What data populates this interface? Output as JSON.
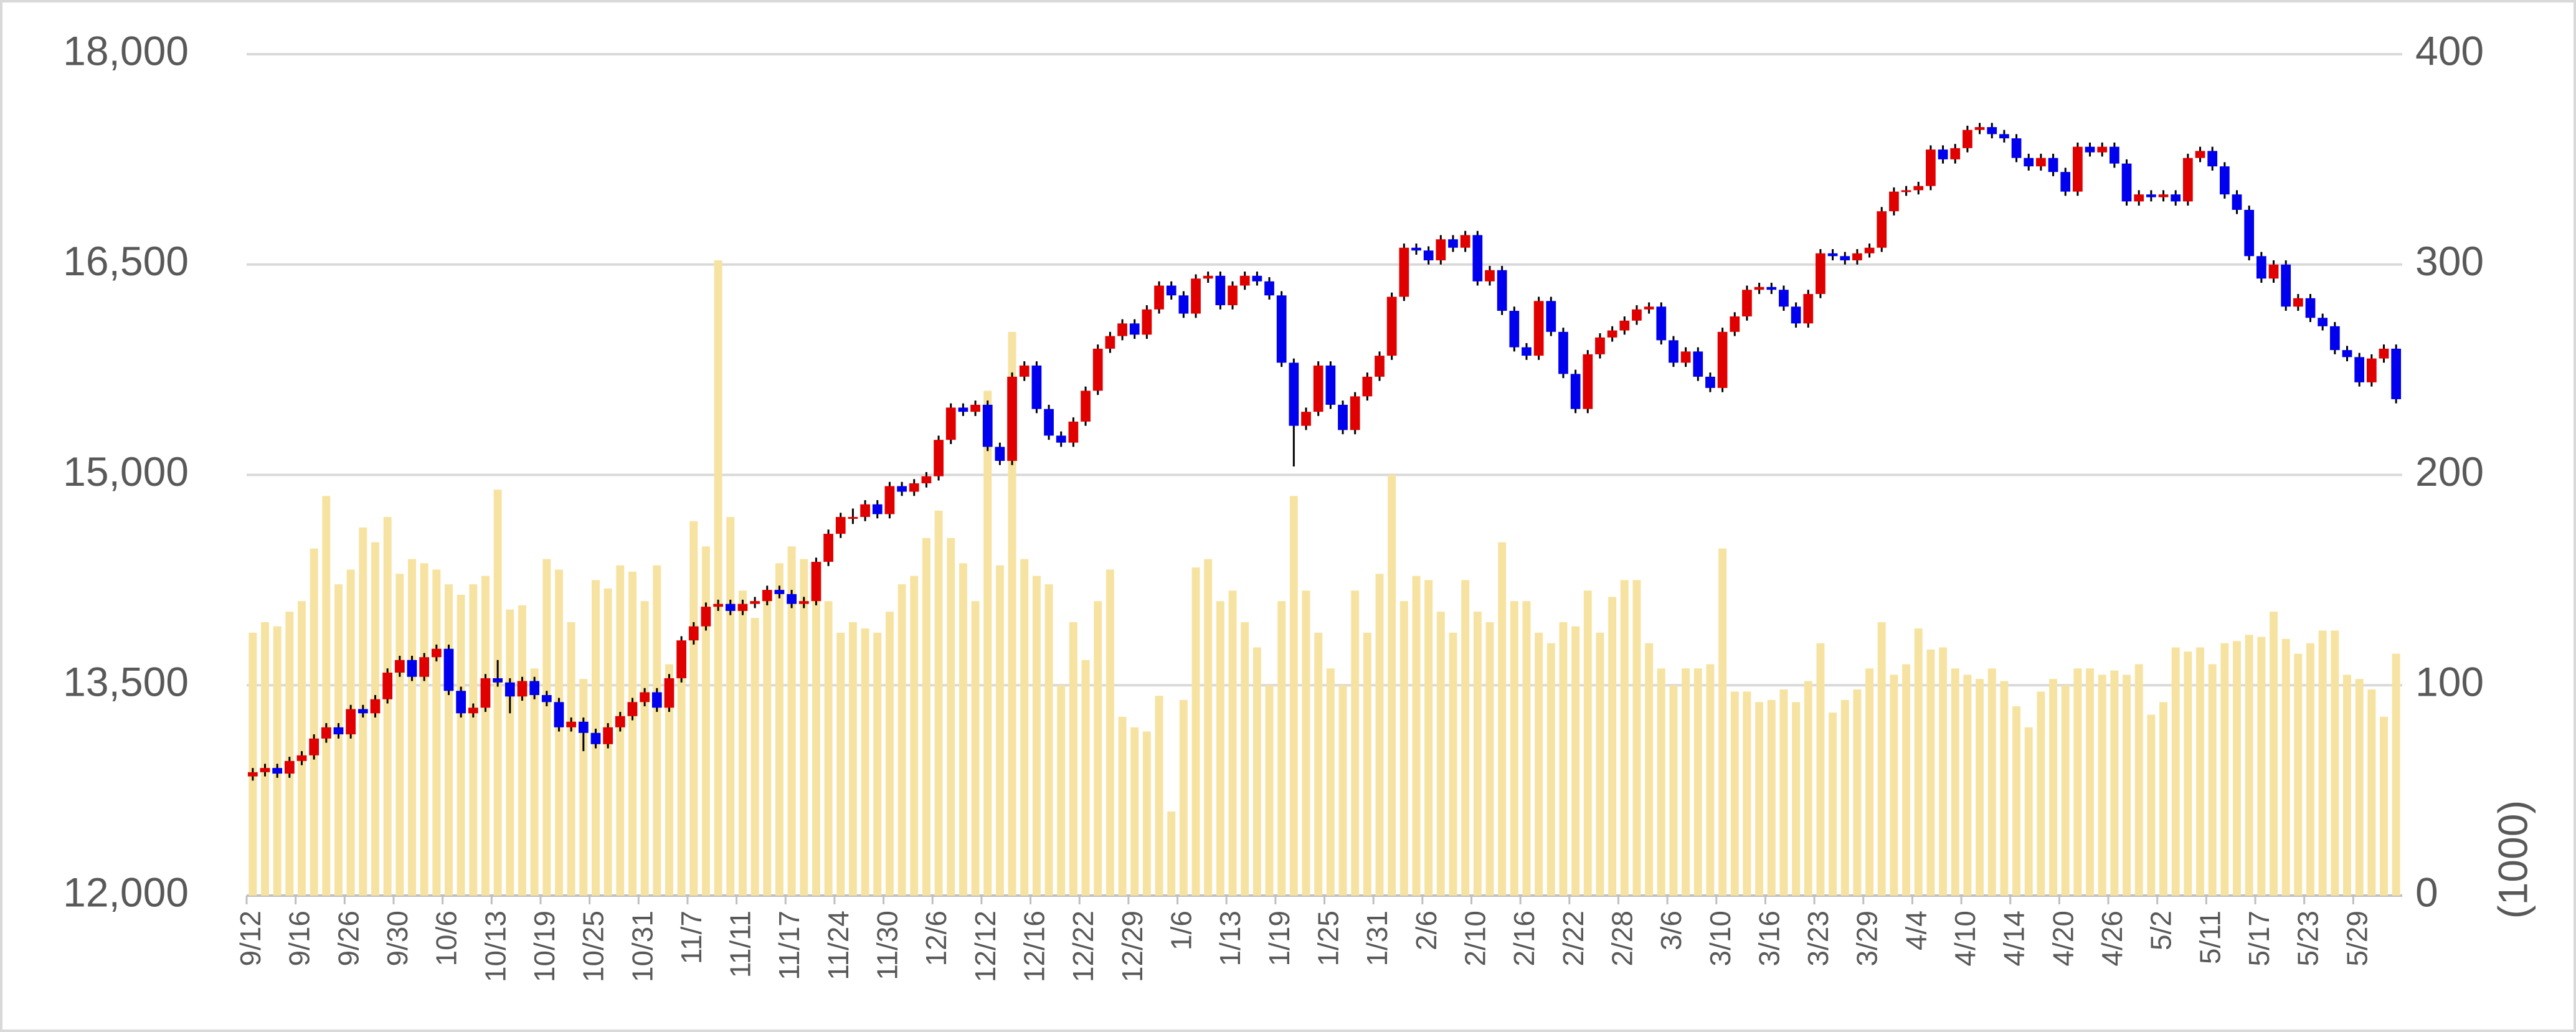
{
  "chart_data": {
    "type": "candlestick",
    "categories": [
      "9/12",
      null,
      null,
      null,
      "9/16",
      null,
      null,
      null,
      "9/26",
      null,
      null,
      null,
      "9/30",
      null,
      null,
      null,
      "10/6",
      null,
      null,
      null,
      "10/13",
      null,
      null,
      null,
      "10/19",
      null,
      null,
      null,
      "10/25",
      null,
      null,
      null,
      "10/31",
      null,
      null,
      null,
      "11/7",
      null,
      null,
      null,
      "11/11",
      null,
      null,
      null,
      "11/17",
      null,
      null,
      null,
      "11/24",
      null,
      null,
      null,
      "11/30",
      null,
      null,
      null,
      "12/6",
      null,
      null,
      null,
      "12/12",
      null,
      null,
      null,
      "12/16",
      null,
      null,
      null,
      "12/22",
      null,
      null,
      null,
      "12/29",
      null,
      null,
      null,
      "1/6",
      null,
      null,
      null,
      "1/13",
      null,
      null,
      null,
      "1/19",
      null,
      null,
      null,
      "1/25",
      null,
      null,
      null,
      "1/31",
      null,
      null,
      null,
      "2/6",
      null,
      null,
      null,
      "2/10",
      null,
      null,
      null,
      "2/16",
      null,
      null,
      null,
      "2/22",
      null,
      null,
      null,
      "2/28",
      null,
      null,
      null,
      "3/6",
      null,
      null,
      null,
      "3/10",
      null,
      null,
      null,
      "3/16",
      null,
      null,
      null,
      "3/23",
      null,
      null,
      null,
      "3/29",
      null,
      null,
      null,
      "4/4",
      null,
      null,
      null,
      "4/10",
      null,
      null,
      null,
      "4/14",
      null,
      null,
      null,
      "4/20",
      null,
      null,
      null,
      "4/26",
      null,
      null,
      null,
      "5/2",
      null,
      null,
      null,
      "5/11",
      null,
      null,
      null,
      "5/17",
      null,
      null,
      null,
      "5/23",
      null,
      null,
      null,
      "5/29",
      null,
      null,
      null
    ],
    "open": [
      12850,
      12880,
      12910,
      12870,
      12960,
      13000,
      13120,
      13200,
      13150,
      13330,
      13300,
      13400,
      13590,
      13680,
      13560,
      13700,
      13760,
      13460,
      13300,
      13340,
      13550,
      13520,
      13420,
      13530,
      13430,
      13380,
      13200,
      13240,
      13160,
      13080,
      13200,
      13280,
      13380,
      13450,
      13340,
      13550,
      13820,
      13920,
      14060,
      14080,
      14030,
      14080,
      14100,
      14180,
      14150,
      14080,
      14100,
      14380,
      14580,
      14700,
      14700,
      14790,
      14720,
      14920,
      14880,
      14940,
      14990,
      15250,
      15480,
      15450,
      15500,
      15200,
      15100,
      15700,
      15780,
      15470,
      15280,
      15230,
      15380,
      15600,
      15900,
      15990,
      16080,
      16000,
      16180,
      16350,
      16280,
      16150,
      16400,
      16420,
      16210,
      16350,
      16420,
      16380,
      16280,
      15800,
      15350,
      15450,
      15780,
      15500,
      15320,
      15560,
      15700,
      15850,
      16270,
      16620,
      16600,
      16530,
      16680,
      16620,
      16710,
      16380,
      16460,
      16170,
      15910,
      15850,
      16240,
      16020,
      15720,
      15470,
      15860,
      15980,
      16030,
      16100,
      16180,
      16200,
      15960,
      15800,
      15880,
      15700,
      15620,
      16020,
      16130,
      16320,
      16340,
      16320,
      16200,
      16080,
      16290,
      16580,
      16560,
      16530,
      16580,
      16620,
      16880,
      17020,
      17030,
      17060,
      17320,
      17250,
      17330,
      17460,
      17480,
      17430,
      17400,
      17260,
      17200,
      17260,
      17160,
      17020,
      17340,
      17300,
      17340,
      17220,
      16950,
      17000,
      16980,
      17000,
      16950,
      17260,
      17310,
      17200,
      17000,
      16890,
      16560,
      16400,
      16500,
      16200,
      16260,
      16120,
      16060,
      15890,
      15840,
      15660,
      15830,
      15900
    ],
    "high": [
      12910,
      12940,
      12940,
      12990,
      13030,
      13150,
      13230,
      13230,
      13360,
      13360,
      13430,
      13620,
      13710,
      13710,
      13730,
      13790,
      13790,
      13490,
      13370,
      13580,
      13680,
      13550,
      13560,
      13560,
      13460,
      13410,
      13270,
      13270,
      13190,
      13230,
      13310,
      13410,
      13480,
      13480,
      13580,
      13850,
      13950,
      14090,
      14110,
      14110,
      14110,
      14130,
      14210,
      14210,
      14180,
      14130,
      14410,
      14610,
      14730,
      14760,
      14820,
      14820,
      14950,
      14950,
      14970,
      15020,
      15280,
      15510,
      15510,
      15530,
      15530,
      15230,
      15730,
      15810,
      15810,
      15500,
      15310,
      15410,
      15630,
      15930,
      16020,
      16110,
      16110,
      16210,
      16380,
      16380,
      16310,
      16430,
      16450,
      16450,
      16380,
      16450,
      16450,
      16410,
      16310,
      15830,
      15480,
      15810,
      15810,
      15530,
      15590,
      15730,
      15880,
      16300,
      16650,
      16650,
      16630,
      16710,
      16710,
      16740,
      16740,
      16490,
      16490,
      16200,
      15940,
      16270,
      16270,
      16050,
      15750,
      15890,
      16010,
      16060,
      16130,
      16210,
      16230,
      16230,
      15990,
      15910,
      15910,
      15730,
      16050,
      16160,
      16350,
      16370,
      16370,
      16350,
      16230,
      16320,
      16610,
      16610,
      16590,
      16610,
      16650,
      16910,
      17050,
      17060,
      17090,
      17350,
      17350,
      17360,
      17490,
      17510,
      17510,
      17460,
      17430,
      17290,
      17290,
      17290,
      17190,
      17370,
      17370,
      17370,
      17370,
      17250,
      17030,
      17030,
      17030,
      17030,
      17290,
      17340,
      17340,
      17230,
      17030,
      16920,
      16590,
      16530,
      16530,
      16290,
      16290,
      16150,
      16090,
      15920,
      15870,
      15860,
      15930,
      15930
    ],
    "low": [
      12820,
      12850,
      12840,
      12840,
      12930,
      12970,
      13090,
      13120,
      13120,
      13270,
      13270,
      13370,
      13560,
      13530,
      13530,
      13670,
      13430,
      13270,
      13270,
      13310,
      13490,
      13300,
      13390,
      13400,
      13350,
      13170,
      13170,
      13030,
      13050,
      13050,
      13170,
      13250,
      13350,
      13310,
      13310,
      13520,
      13790,
      13890,
      14030,
      14000,
      14000,
      14050,
      14070,
      14120,
      14050,
      14050,
      14070,
      14350,
      14550,
      14650,
      14670,
      14690,
      14690,
      14850,
      14850,
      14910,
      14960,
      15220,
      15420,
      15420,
      15170,
      15070,
      15070,
      15670,
      15440,
      15250,
      15200,
      15200,
      15350,
      15570,
      15870,
      15960,
      15970,
      15970,
      16150,
      16250,
      16120,
      16120,
      16370,
      16180,
      16180,
      16320,
      16350,
      16250,
      15770,
      15060,
      15320,
      15420,
      15470,
      15290,
      15290,
      15530,
      15670,
      15820,
      16240,
      16570,
      16500,
      16500,
      16590,
      16590,
      16350,
      16350,
      16140,
      15880,
      15820,
      15820,
      15990,
      15690,
      15440,
      15440,
      15830,
      15950,
      16000,
      16070,
      16150,
      15930,
      15770,
      15770,
      15670,
      15590,
      15590,
      15990,
      16100,
      16290,
      16290,
      16170,
      16050,
      16050,
      16260,
      16530,
      16500,
      16500,
      16550,
      16590,
      16850,
      16990,
      17000,
      17030,
      17220,
      17220,
      17300,
      17430,
      17400,
      17370,
      17230,
      17170,
      17170,
      17130,
      16990,
      16990,
      17270,
      17270,
      17190,
      16920,
      16920,
      16950,
      16950,
      16920,
      16920,
      17230,
      17170,
      16970,
      16860,
      16530,
      16370,
      16370,
      16170,
      16170,
      16090,
      16030,
      15860,
      15810,
      15630,
      15630,
      15800,
      15510
    ],
    "close": [
      12880,
      12910,
      12870,
      12960,
      13000,
      13120,
      13200,
      13150,
      13330,
      13300,
      13400,
      13590,
      13680,
      13560,
      13700,
      13760,
      13460,
      13300,
      13340,
      13550,
      13520,
      13420,
      13530,
      13430,
      13380,
      13200,
      13240,
      13160,
      13080,
      13200,
      13280,
      13380,
      13450,
      13340,
      13550,
      13820,
      13920,
      14060,
      14080,
      14030,
      14080,
      14100,
      14180,
      14150,
      14080,
      14100,
      14380,
      14580,
      14700,
      14700,
      14790,
      14720,
      14920,
      14880,
      14940,
      14990,
      15250,
      15480,
      15450,
      15500,
      15200,
      15100,
      15700,
      15780,
      15470,
      15280,
      15230,
      15380,
      15600,
      15900,
      15990,
      16080,
      16000,
      16180,
      16350,
      16280,
      16150,
      16400,
      16420,
      16210,
      16350,
      16420,
      16380,
      16280,
      15800,
      15350,
      15450,
      15780,
      15500,
      15320,
      15560,
      15700,
      15850,
      16270,
      16620,
      16600,
      16530,
      16680,
      16620,
      16710,
      16380,
      16460,
      16170,
      15910,
      15850,
      16240,
      16020,
      15720,
      15470,
      15860,
      15980,
      16030,
      16100,
      16180,
      16200,
      15960,
      15800,
      15880,
      15700,
      15620,
      16020,
      16130,
      16320,
      16340,
      16320,
      16200,
      16080,
      16290,
      16580,
      16560,
      16530,
      16580,
      16620,
      16880,
      17020,
      17030,
      17060,
      17320,
      17250,
      17330,
      17460,
      17480,
      17430,
      17400,
      17260,
      17200,
      17260,
      17160,
      17020,
      17340,
      17300,
      17340,
      17220,
      16950,
      17000,
      16980,
      17000,
      16950,
      17260,
      17310,
      17200,
      17000,
      16890,
      16560,
      16400,
      16500,
      16200,
      16260,
      16120,
      16060,
      15890,
      15840,
      15660,
      15830,
      15900,
      15540
    ],
    "up_color": "#e00000",
    "down_color": "#0000ee",
    "volume": {
      "axis": "y2",
      "color": "#f7e3a1",
      "values": [
        125,
        130,
        128,
        135,
        140,
        165,
        190,
        148,
        155,
        175,
        168,
        180,
        153,
        160,
        158,
        155,
        148,
        143,
        148,
        152,
        193,
        136,
        138,
        108,
        160,
        155,
        130,
        103,
        150,
        146,
        157,
        154,
        140,
        157,
        110,
        120,
        178,
        166,
        302,
        180,
        145,
        132,
        140,
        158,
        166,
        160,
        150,
        140,
        125,
        130,
        127,
        125,
        135,
        148,
        152,
        170,
        183,
        170,
        158,
        140,
        240,
        157,
        268,
        160,
        152,
        148,
        100,
        130,
        112,
        140,
        155,
        85,
        80,
        78,
        95,
        40,
        93,
        156,
        160,
        140,
        145,
        130,
        118,
        100,
        140,
        190,
        145,
        125,
        108,
        100,
        145,
        125,
        153,
        200,
        140,
        152,
        150,
        135,
        125,
        150,
        135,
        130,
        168,
        140,
        140,
        125,
        120,
        130,
        128,
        145,
        125,
        142,
        150,
        150,
        120,
        108,
        100,
        108,
        108,
        110,
        165,
        97,
        97,
        92,
        93,
        98,
        92,
        102,
        120,
        87,
        93,
        98,
        108,
        130,
        105,
        110,
        127,
        117,
        118,
        108,
        105,
        103,
        108,
        102,
        90,
        80,
        97,
        103,
        100,
        108,
        108,
        105,
        107,
        105,
        110,
        86,
        92,
        118,
        116,
        118,
        110,
        120,
        121,
        124,
        123,
        135,
        122,
        115,
        120,
        126,
        126,
        105,
        103,
        98,
        85,
        115
      ]
    },
    "ylim": [
      12000,
      18000
    ],
    "yticks": [
      {
        "value": 12000,
        "label": "12,000"
      },
      {
        "value": 13500,
        "label": "13,500"
      },
      {
        "value": 15000,
        "label": "15,000"
      },
      {
        "value": 16500,
        "label": "16,500"
      },
      {
        "value": 18000,
        "label": "18,000"
      }
    ],
    "y2lim": [
      0,
      400
    ],
    "y2ticks": [
      0,
      100,
      200,
      300,
      400
    ],
    "y2label": "(1000)",
    "grid": true
  }
}
